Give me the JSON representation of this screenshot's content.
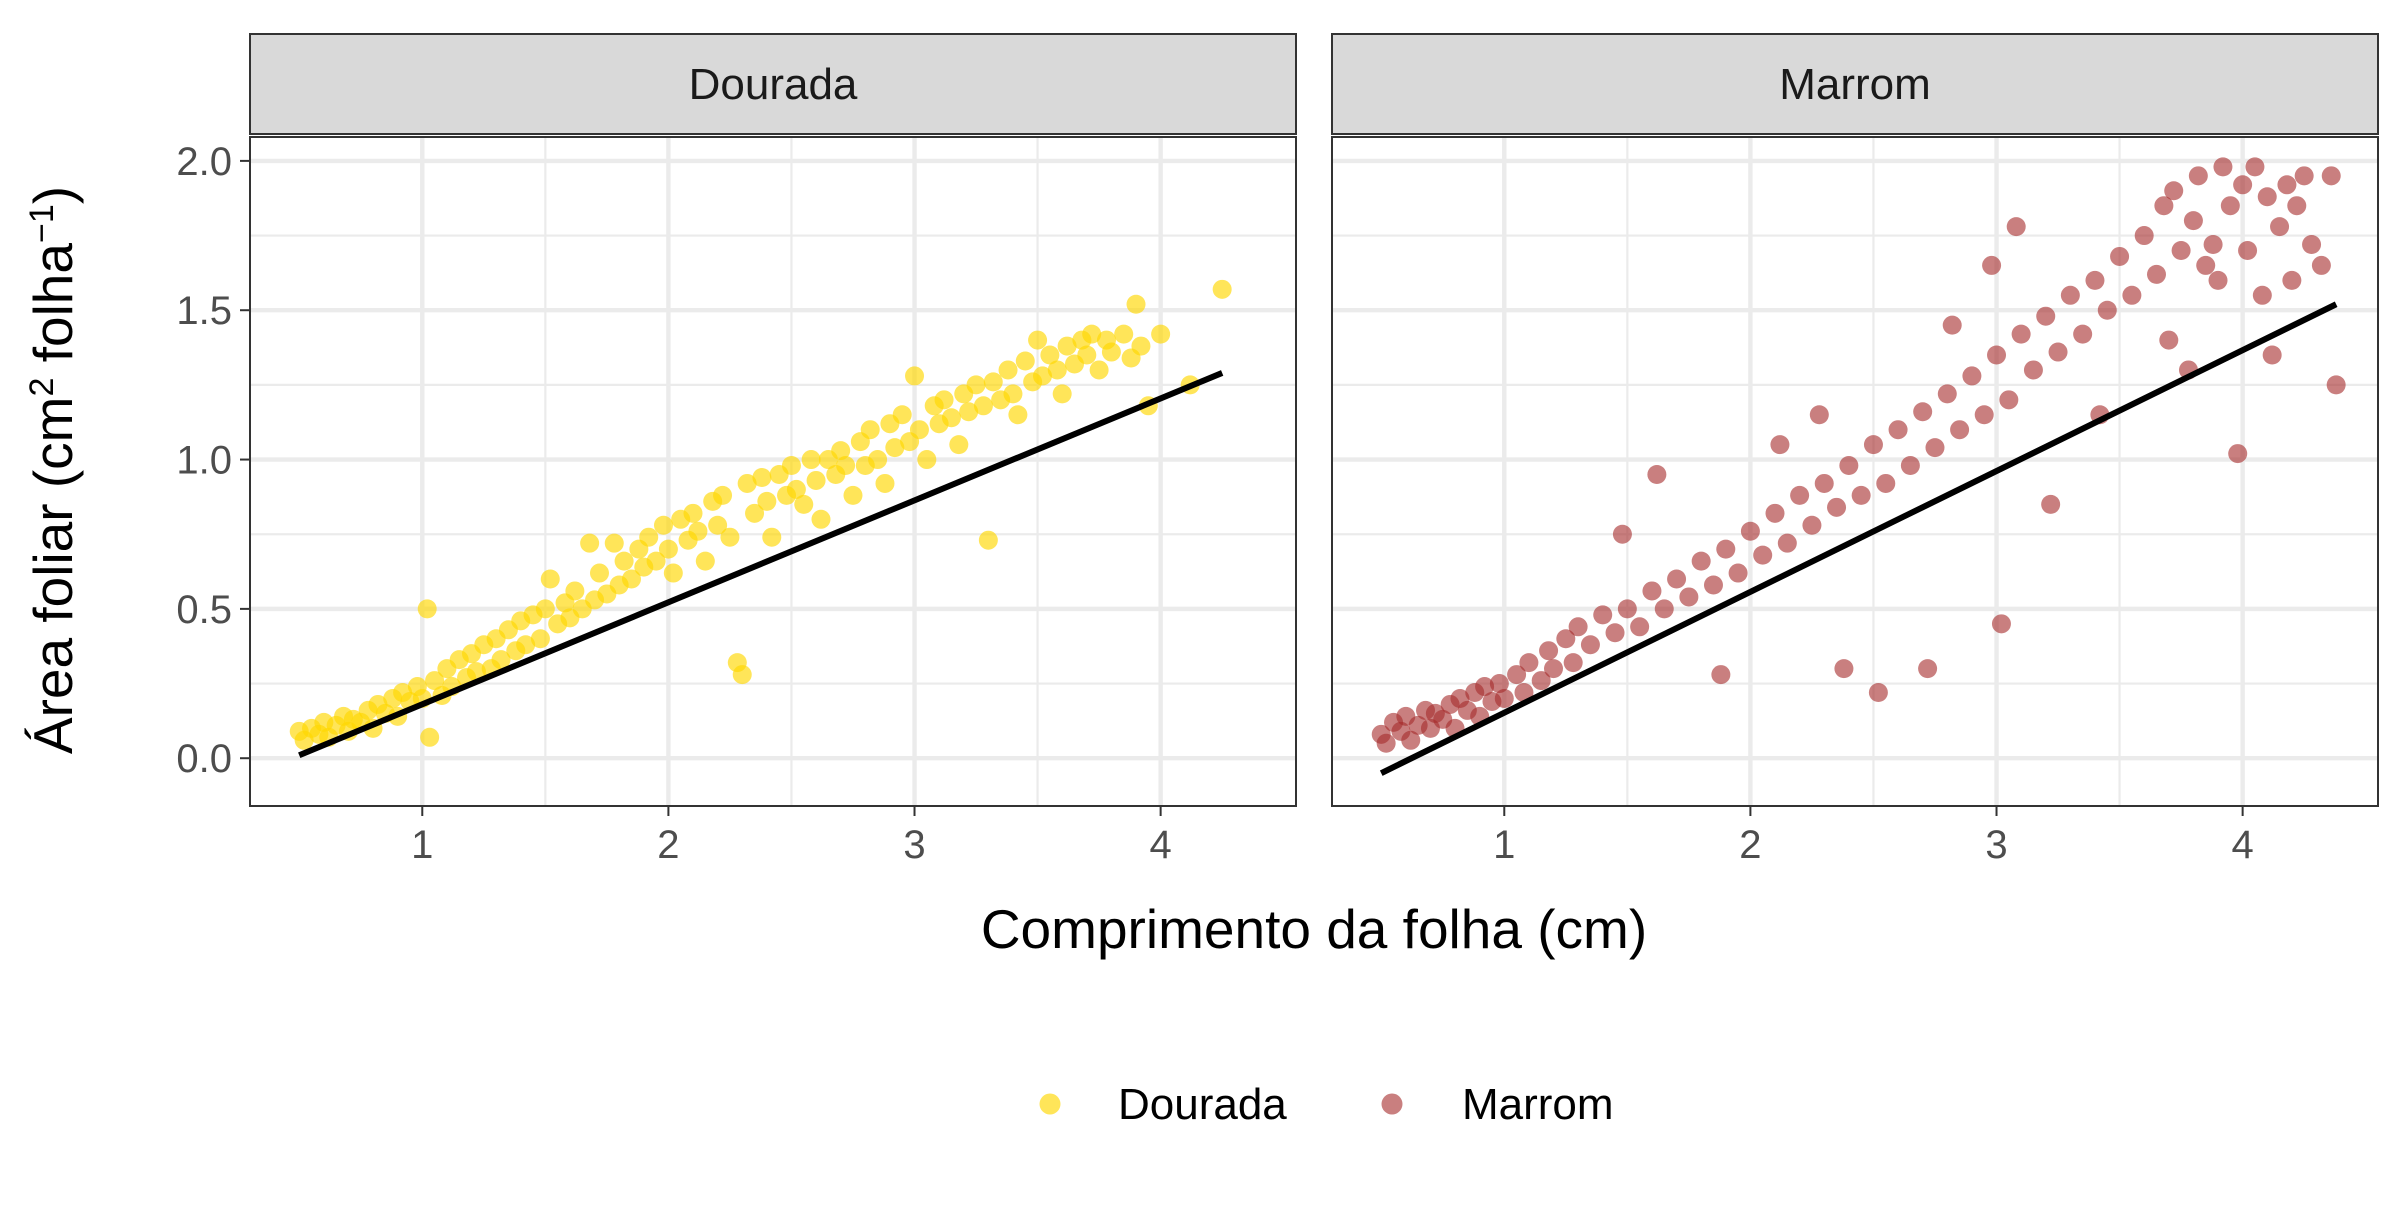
{
  "chart_data": {
    "type": "scatter",
    "facet_by": "color",
    "xlabel": "Comprimento da folha (cm)",
    "ylabel": {
      "main": "Área foliar (cm",
      "sup1": "2",
      "mid": " folha",
      "sup2": "−1",
      "end": ")"
    },
    "xlim": [
      0.3,
      4.55
    ],
    "ylim": [
      -0.16,
      2.08
    ],
    "x_ticks": [
      1,
      2,
      3,
      4
    ],
    "y_ticks": [
      0.0,
      0.5,
      1.0,
      1.5,
      2.0
    ],
    "x_tick_labels": [
      "1",
      "2",
      "3",
      "4"
    ],
    "y_tick_labels": [
      "0.0",
      "0.5",
      "1.0",
      "1.5",
      "2.0"
    ],
    "grid": true,
    "legend_position": "bottom",
    "panels": [
      {
        "name": "Dourada",
        "color": "#FFD700",
        "point_opacity": 0.65,
        "fit_line": {
          "x": [
            0.5,
            4.25
          ],
          "y": [
            0.01,
            1.29
          ]
        },
        "points": [
          [
            0.5,
            0.09
          ],
          [
            0.52,
            0.06
          ],
          [
            0.55,
            0.1
          ],
          [
            0.58,
            0.08
          ],
          [
            0.6,
            0.12
          ],
          [
            0.62,
            0.07
          ],
          [
            0.65,
            0.11
          ],
          [
            0.68,
            0.14
          ],
          [
            0.7,
            0.09
          ],
          [
            0.72,
            0.13
          ],
          [
            0.75,
            0.12
          ],
          [
            0.78,
            0.16
          ],
          [
            0.8,
            0.1
          ],
          [
            0.82,
            0.18
          ],
          [
            0.85,
            0.15
          ],
          [
            0.88,
            0.2
          ],
          [
            0.9,
            0.14
          ],
          [
            0.92,
            0.22
          ],
          [
            0.95,
            0.19
          ],
          [
            0.98,
            0.24
          ],
          [
            1.0,
            0.2
          ],
          [
            1.02,
            0.5
          ],
          [
            1.03,
            0.07
          ],
          [
            1.05,
            0.26
          ],
          [
            1.08,
            0.21
          ],
          [
            1.1,
            0.3
          ],
          [
            1.12,
            0.24
          ],
          [
            1.15,
            0.33
          ],
          [
            1.18,
            0.27
          ],
          [
            1.2,
            0.35
          ],
          [
            1.22,
            0.29
          ],
          [
            1.25,
            0.38
          ],
          [
            1.28,
            0.3
          ],
          [
            1.3,
            0.4
          ],
          [
            1.32,
            0.33
          ],
          [
            1.35,
            0.43
          ],
          [
            1.38,
            0.36
          ],
          [
            1.4,
            0.46
          ],
          [
            1.42,
            0.38
          ],
          [
            1.45,
            0.48
          ],
          [
            1.48,
            0.4
          ],
          [
            1.5,
            0.5
          ],
          [
            1.52,
            0.6
          ],
          [
            1.55,
            0.45
          ],
          [
            1.58,
            0.52
          ],
          [
            1.6,
            0.47
          ],
          [
            1.62,
            0.56
          ],
          [
            1.65,
            0.5
          ],
          [
            1.68,
            0.72
          ],
          [
            1.7,
            0.53
          ],
          [
            1.72,
            0.62
          ],
          [
            1.75,
            0.55
          ],
          [
            1.78,
            0.72
          ],
          [
            1.8,
            0.58
          ],
          [
            1.82,
            0.66
          ],
          [
            1.85,
            0.6
          ],
          [
            1.88,
            0.7
          ],
          [
            1.9,
            0.64
          ],
          [
            1.92,
            0.74
          ],
          [
            1.95,
            0.66
          ],
          [
            1.98,
            0.78
          ],
          [
            2.0,
            0.7
          ],
          [
            2.02,
            0.62
          ],
          [
            2.05,
            0.8
          ],
          [
            2.08,
            0.73
          ],
          [
            2.1,
            0.82
          ],
          [
            2.12,
            0.76
          ],
          [
            2.15,
            0.66
          ],
          [
            2.18,
            0.86
          ],
          [
            2.2,
            0.78
          ],
          [
            2.22,
            0.88
          ],
          [
            2.25,
            0.74
          ],
          [
            2.28,
            0.32
          ],
          [
            2.3,
            0.28
          ],
          [
            2.32,
            0.92
          ],
          [
            2.35,
            0.82
          ],
          [
            2.38,
            0.94
          ],
          [
            2.4,
            0.86
          ],
          [
            2.42,
            0.74
          ],
          [
            2.45,
            0.95
          ],
          [
            2.48,
            0.88
          ],
          [
            2.5,
            0.98
          ],
          [
            2.52,
            0.9
          ],
          [
            2.55,
            0.85
          ],
          [
            2.58,
            1.0
          ],
          [
            2.6,
            0.93
          ],
          [
            2.62,
            0.8
          ],
          [
            2.65,
            1.0
          ],
          [
            2.68,
            0.95
          ],
          [
            2.7,
            1.03
          ],
          [
            2.72,
            0.98
          ],
          [
            2.75,
            0.88
          ],
          [
            2.78,
            1.06
          ],
          [
            2.8,
            0.98
          ],
          [
            2.82,
            1.1
          ],
          [
            2.85,
            1.0
          ],
          [
            2.88,
            0.92
          ],
          [
            2.9,
            1.12
          ],
          [
            2.92,
            1.04
          ],
          [
            2.95,
            1.15
          ],
          [
            2.98,
            1.06
          ],
          [
            3.0,
            1.28
          ],
          [
            3.02,
            1.1
          ],
          [
            3.05,
            1.0
          ],
          [
            3.08,
            1.18
          ],
          [
            3.1,
            1.12
          ],
          [
            3.12,
            1.2
          ],
          [
            3.15,
            1.14
          ],
          [
            3.18,
            1.05
          ],
          [
            3.2,
            1.22
          ],
          [
            3.22,
            1.16
          ],
          [
            3.25,
            1.25
          ],
          [
            3.28,
            1.18
          ],
          [
            3.3,
            0.73
          ],
          [
            3.32,
            1.26
          ],
          [
            3.35,
            1.2
          ],
          [
            3.38,
            1.3
          ],
          [
            3.4,
            1.22
          ],
          [
            3.42,
            1.15
          ],
          [
            3.45,
            1.33
          ],
          [
            3.48,
            1.26
          ],
          [
            3.5,
            1.4
          ],
          [
            3.52,
            1.28
          ],
          [
            3.55,
            1.35
          ],
          [
            3.58,
            1.3
          ],
          [
            3.6,
            1.22
          ],
          [
            3.62,
            1.38
          ],
          [
            3.65,
            1.32
          ],
          [
            3.68,
            1.4
          ],
          [
            3.7,
            1.35
          ],
          [
            3.72,
            1.42
          ],
          [
            3.75,
            1.3
          ],
          [
            3.78,
            1.4
          ],
          [
            3.8,
            1.36
          ],
          [
            3.85,
            1.42
          ],
          [
            3.88,
            1.34
          ],
          [
            3.9,
            1.52
          ],
          [
            3.92,
            1.38
          ],
          [
            3.95,
            1.18
          ],
          [
            4.0,
            1.42
          ],
          [
            4.12,
            1.25
          ],
          [
            4.25,
            1.57
          ]
        ]
      },
      {
        "name": "Marrom",
        "color": "#A52A2A",
        "point_opacity": 0.6,
        "fit_line": {
          "x": [
            0.5,
            4.38
          ],
          "y": [
            -0.05,
            1.52
          ]
        },
        "points": [
          [
            0.5,
            0.08
          ],
          [
            0.52,
            0.05
          ],
          [
            0.55,
            0.12
          ],
          [
            0.58,
            0.09
          ],
          [
            0.6,
            0.14
          ],
          [
            0.62,
            0.06
          ],
          [
            0.65,
            0.11
          ],
          [
            0.68,
            0.16
          ],
          [
            0.7,
            0.1
          ],
          [
            0.72,
            0.15
          ],
          [
            0.75,
            0.13
          ],
          [
            0.78,
            0.18
          ],
          [
            0.8,
            0.1
          ],
          [
            0.82,
            0.2
          ],
          [
            0.85,
            0.16
          ],
          [
            0.88,
            0.22
          ],
          [
            0.9,
            0.14
          ],
          [
            0.92,
            0.24
          ],
          [
            0.95,
            0.19
          ],
          [
            0.98,
            0.25
          ],
          [
            1.0,
            0.2
          ],
          [
            1.05,
            0.28
          ],
          [
            1.08,
            0.22
          ],
          [
            1.1,
            0.32
          ],
          [
            1.15,
            0.26
          ],
          [
            1.18,
            0.36
          ],
          [
            1.2,
            0.3
          ],
          [
            1.25,
            0.4
          ],
          [
            1.28,
            0.32
          ],
          [
            1.3,
            0.44
          ],
          [
            1.35,
            0.38
          ],
          [
            1.4,
            0.48
          ],
          [
            1.45,
            0.42
          ],
          [
            1.48,
            0.75
          ],
          [
            1.5,
            0.5
          ],
          [
            1.55,
            0.44
          ],
          [
            1.6,
            0.56
          ],
          [
            1.62,
            0.95
          ],
          [
            1.65,
            0.5
          ],
          [
            1.7,
            0.6
          ],
          [
            1.75,
            0.54
          ],
          [
            1.8,
            0.66
          ],
          [
            1.85,
            0.58
          ],
          [
            1.88,
            0.28
          ],
          [
            1.9,
            0.7
          ],
          [
            1.95,
            0.62
          ],
          [
            2.0,
            0.76
          ],
          [
            2.05,
            0.68
          ],
          [
            2.1,
            0.82
          ],
          [
            2.12,
            1.05
          ],
          [
            2.15,
            0.72
          ],
          [
            2.2,
            0.88
          ],
          [
            2.25,
            0.78
          ],
          [
            2.28,
            1.15
          ],
          [
            2.3,
            0.92
          ],
          [
            2.35,
            0.84
          ],
          [
            2.38,
            0.3
          ],
          [
            2.4,
            0.98
          ],
          [
            2.45,
            0.88
          ],
          [
            2.5,
            1.05
          ],
          [
            2.52,
            0.22
          ],
          [
            2.55,
            0.92
          ],
          [
            2.6,
            1.1
          ],
          [
            2.65,
            0.98
          ],
          [
            2.7,
            1.16
          ],
          [
            2.72,
            0.3
          ],
          [
            2.75,
            1.04
          ],
          [
            2.8,
            1.22
          ],
          [
            2.82,
            1.45
          ],
          [
            2.85,
            1.1
          ],
          [
            2.9,
            1.28
          ],
          [
            2.95,
            1.15
          ],
          [
            2.98,
            1.65
          ],
          [
            3.0,
            1.35
          ],
          [
            3.02,
            0.45
          ],
          [
            3.05,
            1.2
          ],
          [
            3.08,
            1.78
          ],
          [
            3.1,
            1.42
          ],
          [
            3.15,
            1.3
          ],
          [
            3.2,
            1.48
          ],
          [
            3.22,
            0.85
          ],
          [
            3.25,
            1.36
          ],
          [
            3.3,
            1.55
          ],
          [
            3.35,
            1.42
          ],
          [
            3.4,
            1.6
          ],
          [
            3.42,
            1.15
          ],
          [
            3.45,
            1.5
          ],
          [
            3.5,
            1.68
          ],
          [
            3.55,
            1.55
          ],
          [
            3.6,
            1.75
          ],
          [
            3.65,
            1.62
          ],
          [
            3.68,
            1.85
          ],
          [
            3.7,
            1.4
          ],
          [
            3.72,
            1.9
          ],
          [
            3.75,
            1.7
          ],
          [
            3.78,
            1.3
          ],
          [
            3.8,
            1.8
          ],
          [
            3.82,
            1.95
          ],
          [
            3.85,
            1.65
          ],
          [
            3.88,
            1.72
          ],
          [
            3.9,
            1.6
          ],
          [
            3.92,
            1.98
          ],
          [
            3.95,
            1.85
          ],
          [
            3.98,
            1.02
          ],
          [
            4.0,
            1.92
          ],
          [
            4.02,
            1.7
          ],
          [
            4.05,
            1.98
          ],
          [
            4.08,
            1.55
          ],
          [
            4.1,
            1.88
          ],
          [
            4.12,
            1.35
          ],
          [
            4.15,
            1.78
          ],
          [
            4.18,
            1.92
          ],
          [
            4.2,
            1.6
          ],
          [
            4.22,
            1.85
          ],
          [
            4.25,
            1.95
          ],
          [
            4.28,
            1.72
          ],
          [
            4.32,
            1.65
          ],
          [
            4.36,
            1.95
          ],
          [
            4.38,
            1.25
          ]
        ]
      }
    ],
    "legend": [
      {
        "label": "Dourada",
        "color": "#FFD700"
      },
      {
        "label": "Marrom",
        "color": "#A52A2A"
      }
    ]
  }
}
